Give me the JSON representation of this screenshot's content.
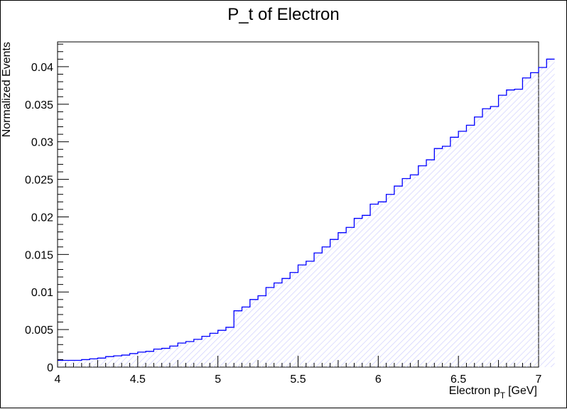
{
  "chart_data": {
    "type": "histogram",
    "title": "P_t of Electron",
    "xlabel_main": "Electron p",
    "xlabel_sub": "T",
    "xlabel_unit": "[GeV]",
    "ylabel": "Normalized Events",
    "xlim": [
      4,
      7
    ],
    "ylim": [
      0,
      0.0433
    ],
    "x_ticks": [
      4,
      4.5,
      5,
      5.5,
      6,
      6.5,
      7
    ],
    "x_tick_labels": [
      "4",
      "4.5",
      "5",
      "5.5",
      "6",
      "6.5",
      "7"
    ],
    "y_ticks": [
      0,
      0.005,
      0.01,
      0.015,
      0.02,
      0.025,
      0.03,
      0.035,
      0.04
    ],
    "y_tick_labels": [
      "0",
      "0.005",
      "0.01",
      "0.015",
      "0.02",
      "0.025",
      "0.03",
      "0.035",
      "0.04"
    ],
    "grid": false,
    "line_color": "#0000ff",
    "fill_color": "#c8c8ff",
    "fill_style": "diagonal-hatch",
    "bin_edges_start": 4,
    "bin_width": 0.05,
    "values": [
      0.0009,
      0.0009,
      0.0009,
      0.001,
      0.0011,
      0.0012,
      0.0014,
      0.0015,
      0.0016,
      0.0018,
      0.002,
      0.0021,
      0.0024,
      0.0025,
      0.0028,
      0.0032,
      0.0034,
      0.0037,
      0.0041,
      0.0045,
      0.0049,
      0.0053,
      0.0075,
      0.008,
      0.009,
      0.0095,
      0.0106,
      0.0112,
      0.0118,
      0.0126,
      0.0136,
      0.0141,
      0.0152,
      0.016,
      0.017,
      0.0179,
      0.0186,
      0.0198,
      0.0202,
      0.0217,
      0.022,
      0.023,
      0.0241,
      0.0251,
      0.0256,
      0.0268,
      0.0276,
      0.0291,
      0.0294,
      0.0306,
      0.0314,
      0.0322,
      0.0333,
      0.0344,
      0.0347,
      0.0362,
      0.0369,
      0.037,
      0.0385,
      0.0392,
      0.0399,
      0.041
    ]
  }
}
